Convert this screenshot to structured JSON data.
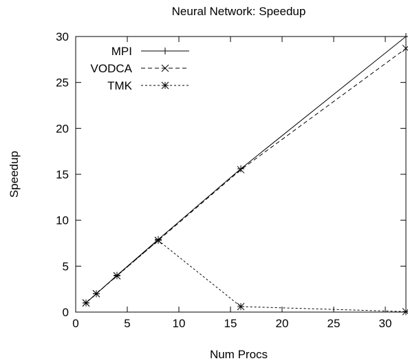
{
  "chart_data": {
    "type": "line",
    "title": "Neural Network: Speedup",
    "xlabel": "Num Procs",
    "ylabel": "Speedup",
    "xlim": [
      0,
      32
    ],
    "ylim": [
      0,
      30
    ],
    "xticks": [
      0,
      5,
      10,
      15,
      20,
      25,
      30
    ],
    "yticks": [
      0,
      5,
      10,
      15,
      20,
      25,
      30
    ],
    "xtick_labels": [
      "0",
      "5",
      "10",
      "15",
      "20",
      "25",
      "30"
    ],
    "ytick_labels": [
      "0",
      "5",
      "10",
      "15",
      "20",
      "25",
      "30"
    ],
    "grid": false,
    "legend_position": "top-left",
    "series": [
      {
        "name": "MPI",
        "marker": "plus",
        "line_style": "solid",
        "color": "#000000",
        "x": [
          1,
          2,
          4,
          8,
          16,
          32
        ],
        "y": [
          1.0,
          2.0,
          4.0,
          7.9,
          15.6,
          30.0
        ]
      },
      {
        "name": "VODCA",
        "marker": "cross",
        "line_style": "dashed",
        "color": "#000000",
        "x": [
          1,
          2,
          4,
          8,
          16,
          32
        ],
        "y": [
          1.0,
          2.0,
          3.95,
          7.8,
          15.5,
          28.7
        ]
      },
      {
        "name": "TMK",
        "marker": "star",
        "line_style": "dotted",
        "color": "#000000",
        "x": [
          1,
          2,
          4,
          8,
          16,
          32
        ],
        "y": [
          1.0,
          2.0,
          3.95,
          7.8,
          0.6,
          0.05
        ]
      }
    ]
  }
}
